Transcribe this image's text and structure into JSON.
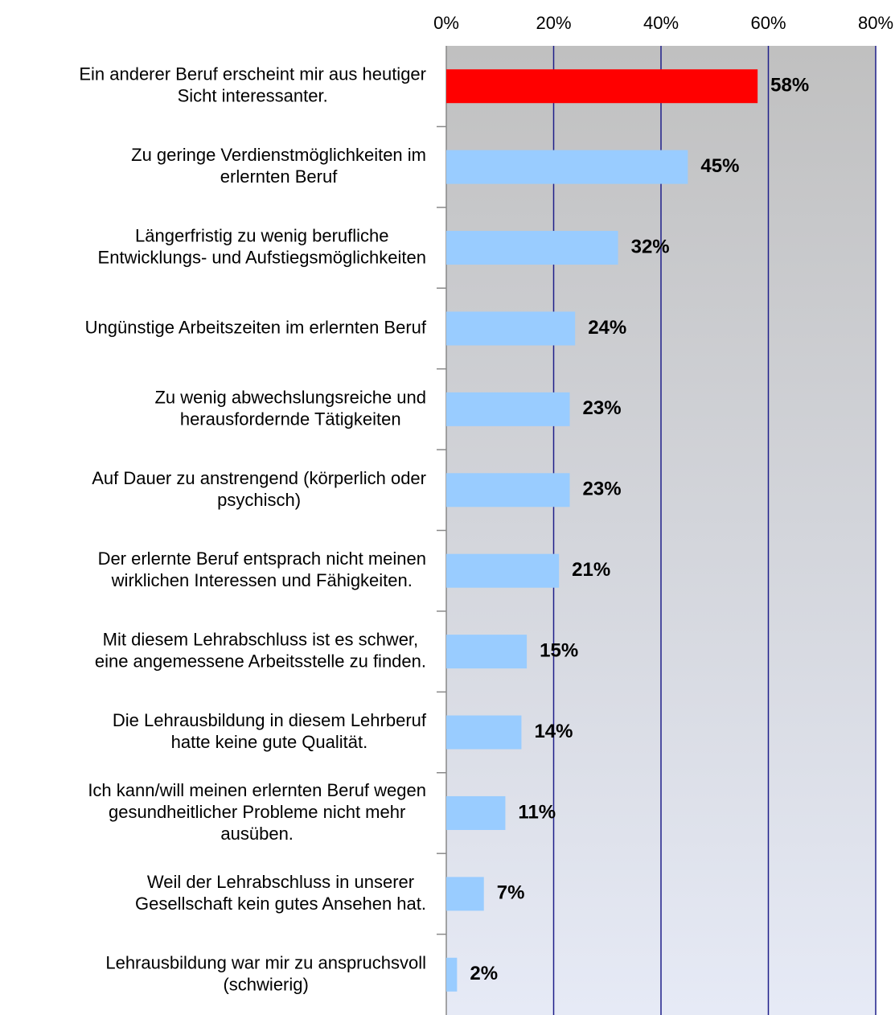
{
  "chart_data": {
    "type": "barh",
    "categories": [
      "Ein anderer Beruf erscheint mir aus heutiger\nSicht interessanter.",
      "Zu geringe Verdienstmöglichkeiten im\nerlernten Beruf",
      "Längerfristig zu wenig berufliche\nEntwicklungs- und Aufstiegsmöglichkeiten",
      "Ungünstige Arbeitszeiten im erlernten Beruf",
      "Zu wenig abwechslungsreiche und\nherausfordernde Tätigkeiten",
      "Auf Dauer zu anstrengend (körperlich oder\npsychisch)",
      "Der erlernte Beruf entsprach nicht meinen\nwirklichen Interessen und Fähigkeiten.",
      "Mit diesem Lehrabschluss ist es schwer,\neine angemessene Arbeitsstelle zu finden.",
      "Die Lehrausbildung in diesem Lehrberuf\nhatte keine gute Qualität.",
      "Ich kann/will meinen erlernten Beruf wegen\ngesundheitlicher Probleme nicht mehr\nausüben.",
      "Weil der Lehrabschluss in unserer\nGesellschaft kein gutes Ansehen hat.",
      "Lehrausbildung war mir zu anspruchsvoll\n(schwierig)"
    ],
    "values": [
      58,
      45,
      32,
      24,
      23,
      23,
      21,
      15,
      14,
      11,
      7,
      2
    ],
    "value_labels": [
      "58%",
      "45%",
      "32%",
      "24%",
      "23%",
      "23%",
      "21%",
      "15%",
      "14%",
      "11%",
      "7%",
      "2%"
    ],
    "colors": [
      "#ff0000",
      "#99ccff",
      "#99ccff",
      "#99ccff",
      "#99ccff",
      "#99ccff",
      "#99ccff",
      "#99ccff",
      "#99ccff",
      "#99ccff",
      "#99ccff",
      "#99ccff"
    ],
    "xlim": [
      0,
      80
    ],
    "xticks": [
      {
        "value": 0,
        "label": "0%"
      },
      {
        "value": 20,
        "label": "20%"
      },
      {
        "value": 40,
        "label": "40%"
      },
      {
        "value": 60,
        "label": "60%"
      },
      {
        "value": 80,
        "label": "80%"
      }
    ],
    "grid": true
  }
}
